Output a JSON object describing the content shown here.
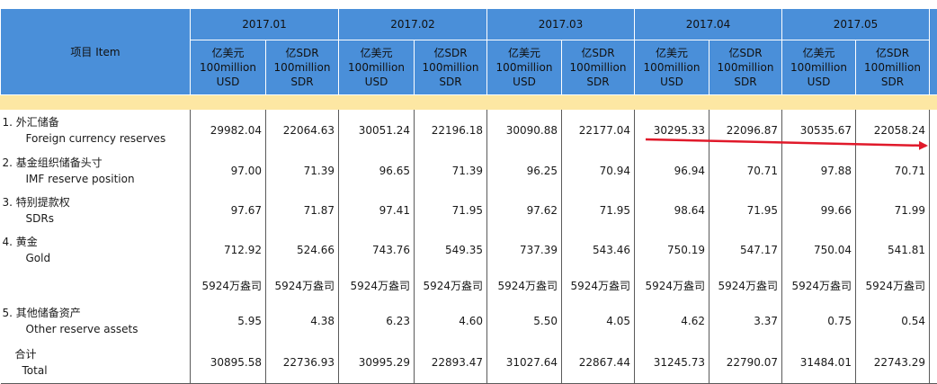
{
  "header": {
    "item": "项目  Item",
    "months": [
      "2017.01",
      "2017.02",
      "2017.03",
      "2017.04",
      "2017.05"
    ],
    "unit_usd": [
      "亿美元",
      "100million",
      "USD"
    ],
    "unit_sdr": [
      "亿SDR",
      "100million",
      "SDR"
    ]
  },
  "rows": [
    {
      "zh": "1.  外汇储备",
      "en": "Foreign currency reserves",
      "values": [
        "29982.04",
        "22064.63",
        "30051.24",
        "22196.18",
        "30090.88",
        "22177.04",
        "30295.33",
        "22096.87",
        "30535.67",
        "22058.24"
      ]
    },
    {
      "zh": "2.  基金组织储备头寸",
      "en": "IMF reserve position",
      "values": [
        "97.00",
        "71.39",
        "96.65",
        "71.39",
        "96.25",
        "70.94",
        "96.94",
        "70.71",
        "97.88",
        "70.71"
      ]
    },
    {
      "zh": "3.  特别提款权",
      "en": "SDRs",
      "values": [
        "97.67",
        "71.87",
        "97.41",
        "71.95",
        "97.62",
        "71.95",
        "98.64",
        "71.95",
        "99.66",
        "71.99"
      ]
    },
    {
      "zh": "4.  黄金",
      "en": "Gold",
      "values": [
        "712.92",
        "524.66",
        "743.76",
        "549.35",
        "737.39",
        "543.46",
        "750.19",
        "547.17",
        "750.04",
        "541.81"
      ]
    },
    {
      "zh": "",
      "en": "",
      "values": [
        "5924万盎司",
        "5924万盎司",
        "5924万盎司",
        "5924万盎司",
        "5924万盎司",
        "5924万盎司",
        "5924万盎司",
        "5924万盎司",
        "5924万盎司",
        "5924万盎司"
      ]
    },
    {
      "zh": "5.  其他储备资产",
      "en": "Other reserve assets",
      "values": [
        "5.95",
        "4.38",
        "6.23",
        "4.60",
        "5.50",
        "4.05",
        "4.62",
        "3.37",
        "0.75",
        "0.54"
      ]
    },
    {
      "zh": "合计",
      "en": "Total",
      "values": [
        "30895.58",
        "22736.93",
        "30995.29",
        "22893.47",
        "31027.64",
        "22867.44",
        "31245.73",
        "22790.07",
        "31484.01",
        "22743.29"
      ]
    }
  ],
  "colors": {
    "header_bg": "#4a8fd9",
    "band_bg": "#fde7a3",
    "arrow": "#e0192a"
  }
}
